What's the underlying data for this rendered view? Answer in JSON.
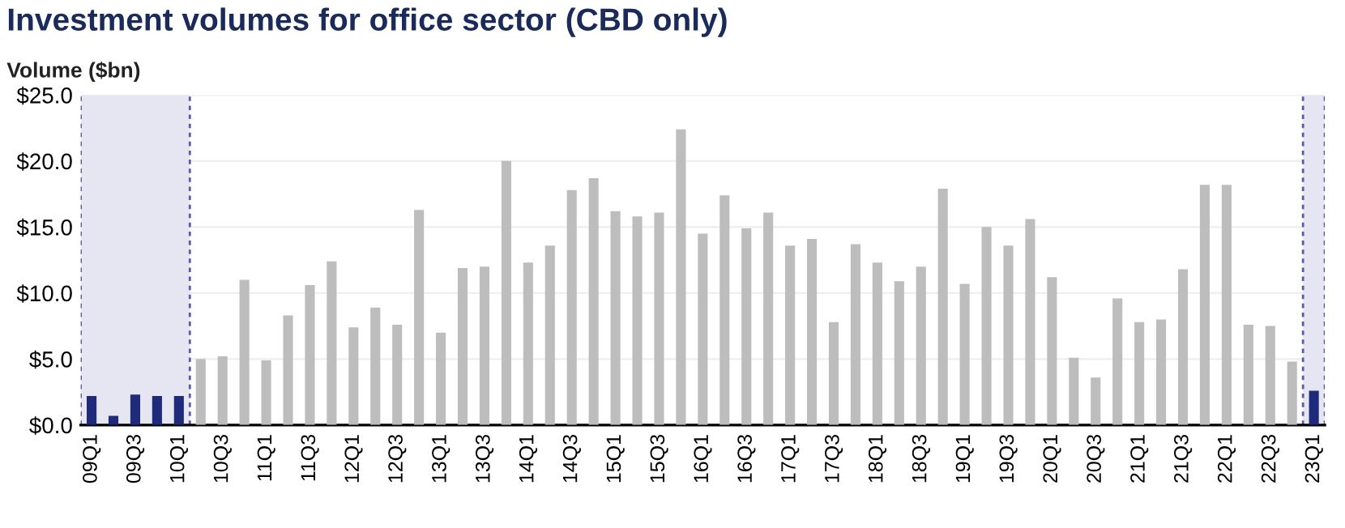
{
  "chart_data": {
    "type": "bar",
    "title": "Investment volumes for office sector (CBD only)",
    "ylabel": "Volume ($bn)",
    "categories": [
      "09Q1",
      null,
      "09Q3",
      null,
      "10Q1",
      null,
      "10Q3",
      null,
      "11Q1",
      null,
      "11Q3",
      null,
      "12Q1",
      null,
      "12Q3",
      null,
      "13Q1",
      null,
      "13Q3",
      null,
      "14Q1",
      null,
      "14Q3",
      null,
      "15Q1",
      null,
      "15Q3",
      null,
      "16Q1",
      null,
      "16Q3",
      null,
      "17Q1",
      null,
      "17Q3",
      null,
      "18Q1",
      null,
      "18Q3",
      null,
      "19Q1",
      null,
      "19Q3",
      null,
      "20Q1",
      null,
      "20Q3",
      null,
      "21Q1",
      null,
      "21Q3",
      null,
      "22Q1",
      null,
      "22Q3",
      null,
      "23Q1"
    ],
    "values": [
      2.2,
      0.7,
      2.3,
      2.2,
      2.2,
      5.0,
      5.2,
      11.0,
      4.9,
      8.3,
      10.6,
      12.4,
      7.4,
      8.9,
      7.6,
      16.3,
      7.0,
      11.9,
      12.0,
      20.0,
      12.3,
      13.6,
      17.8,
      18.7,
      16.2,
      15.8,
      16.1,
      22.4,
      14.5,
      17.4,
      14.9,
      16.1,
      13.6,
      14.1,
      7.8,
      13.7,
      12.3,
      10.9,
      12.0,
      17.9,
      10.7,
      15.0,
      13.6,
      15.6,
      11.2,
      5.1,
      3.6,
      9.6,
      7.8,
      8.0,
      11.8,
      18.2,
      18.2,
      7.6,
      7.5,
      4.8,
      2.6
    ],
    "colors": [
      "#1f2a7a",
      "#1f2a7a",
      "#1f2a7a",
      "#1f2a7a",
      "#1f2a7a",
      "#bdbdbd",
      "#bdbdbd",
      "#bdbdbd",
      "#bdbdbd",
      "#bdbdbd",
      "#bdbdbd",
      "#bdbdbd",
      "#bdbdbd",
      "#bdbdbd",
      "#bdbdbd",
      "#bdbdbd",
      "#bdbdbd",
      "#bdbdbd",
      "#bdbdbd",
      "#bdbdbd",
      "#bdbdbd",
      "#bdbdbd",
      "#bdbdbd",
      "#bdbdbd",
      "#bdbdbd",
      "#bdbdbd",
      "#bdbdbd",
      "#bdbdbd",
      "#bdbdbd",
      "#bdbdbd",
      "#bdbdbd",
      "#bdbdbd",
      "#bdbdbd",
      "#bdbdbd",
      "#bdbdbd",
      "#bdbdbd",
      "#bdbdbd",
      "#bdbdbd",
      "#bdbdbd",
      "#bdbdbd",
      "#bdbdbd",
      "#bdbdbd",
      "#bdbdbd",
      "#bdbdbd",
      "#bdbdbd",
      "#bdbdbd",
      "#bdbdbd",
      "#bdbdbd",
      "#bdbdbd",
      "#bdbdbd",
      "#bdbdbd",
      "#bdbdbd",
      "#bdbdbd",
      "#bdbdbd",
      "#bdbdbd",
      "#bdbdbd",
      "#1f2a7a"
    ],
    "ylim": [
      0,
      25
    ],
    "yticks": [
      {
        "value": 0,
        "label": "$0.0"
      },
      {
        "value": 5,
        "label": "$5.0"
      },
      {
        "value": 10,
        "label": "$10.0"
      },
      {
        "value": 15,
        "label": "$15.0"
      },
      {
        "value": 20,
        "label": "$20.0"
      },
      {
        "value": 25,
        "label": "$25.0"
      }
    ],
    "grid": "y",
    "bands": [
      {
        "axis": "x",
        "from": "09Q1",
        "to": "10Q1",
        "color": "#e6e6f2"
      },
      {
        "axis": "x",
        "from": "23Q1",
        "to": "23Q1",
        "color": "#e6e6f2"
      }
    ]
  }
}
